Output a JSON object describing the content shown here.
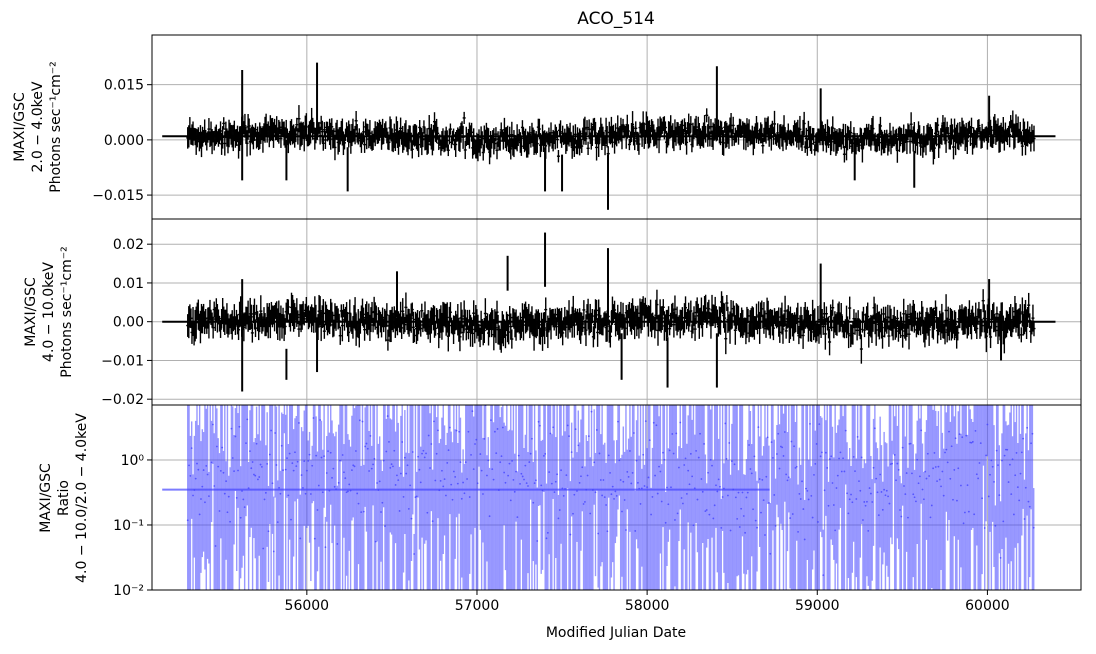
{
  "chart_data": [
    {
      "type": "line",
      "panel": "top",
      "title": "ACO_514",
      "ylabel": [
        "MAXI/GSC",
        "2.0 − 4.0keV",
        "Photons sec⁻¹cm⁻²"
      ],
      "xlim": [
        55090,
        60550
      ],
      "ylim": [
        -0.0215,
        0.0285
      ],
      "yticks": [
        -0.015,
        0.0,
        0.015
      ],
      "ytick_labels": [
        "−0.015",
        "0.000",
        "0.015"
      ],
      "xticks": [
        56000,
        57000,
        58000,
        59000,
        60000
      ],
      "grid": true,
      "series": [
        {
          "style": "errorbar",
          "color": "#000000",
          "summary_level": 0.001,
          "summary_x": [
            55150,
            60400
          ],
          "x_range": [
            55300,
            60280
          ],
          "n_points": 800,
          "noise_sigma": 0.0025,
          "highlights": [
            {
              "x": 55620,
              "low": -0.011,
              "high": 0.019
            },
            {
              "x": 56060,
              "low": 0.0,
              "high": 0.021
            },
            {
              "x": 55880,
              "low": -0.011,
              "high": 0.0
            },
            {
              "x": 56240,
              "low": -0.014,
              "high": -0.002
            },
            {
              "x": 57400,
              "low": -0.014,
              "high": -0.002
            },
            {
              "x": 57500,
              "low": -0.014,
              "high": -0.004
            },
            {
              "x": 57770,
              "low": -0.019,
              "high": -0.004
            },
            {
              "x": 58410,
              "low": 0.002,
              "high": 0.02
            },
            {
              "x": 59020,
              "low": 0.0,
              "high": 0.014
            },
            {
              "x": 59220,
              "low": -0.011,
              "high": 0.0
            },
            {
              "x": 59570,
              "low": -0.013,
              "high": -0.003
            },
            {
              "x": 60010,
              "low": 0.003,
              "high": 0.012
            }
          ]
        }
      ]
    },
    {
      "type": "line",
      "panel": "middle",
      "ylabel": [
        "MAXI/GSC",
        "4.0 − 10.0keV",
        "Photons sec⁻¹cm⁻²"
      ],
      "xlim": [
        55090,
        60550
      ],
      "ylim": [
        -0.0215,
        0.0265
      ],
      "yticks": [
        -0.02,
        -0.01,
        0.0,
        0.01,
        0.02
      ],
      "ytick_labels": [
        "−0.02",
        "−0.01",
        "0.00",
        "0.01",
        "0.02"
      ],
      "xticks": [
        56000,
        57000,
        58000,
        59000,
        60000
      ],
      "grid": true,
      "series": [
        {
          "style": "errorbar",
          "color": "#000000",
          "summary_level": 0.0,
          "summary_x": [
            55150,
            60400
          ],
          "x_range": [
            55300,
            60280
          ],
          "n_points": 800,
          "noise_sigma": 0.0028,
          "highlights": [
            {
              "x": 55620,
              "low": -0.018,
              "high": 0.011
            },
            {
              "x": 55880,
              "low": -0.015,
              "high": -0.007
            },
            {
              "x": 56060,
              "low": -0.013,
              "high": -0.002
            },
            {
              "x": 56530,
              "low": 0.001,
              "high": 0.013
            },
            {
              "x": 57180,
              "low": 0.008,
              "high": 0.017
            },
            {
              "x": 57400,
              "low": 0.009,
              "high": 0.023
            },
            {
              "x": 57770,
              "low": 0.001,
              "high": 0.019
            },
            {
              "x": 57850,
              "low": -0.015,
              "high": -0.003
            },
            {
              "x": 58120,
              "low": -0.017,
              "high": -0.004
            },
            {
              "x": 58410,
              "low": -0.017,
              "high": -0.003
            },
            {
              "x": 59020,
              "low": 0.0,
              "high": 0.015
            },
            {
              "x": 60010,
              "low": 0.0,
              "high": 0.011
            },
            {
              "x": 60080,
              "low": -0.01,
              "high": 0.0
            }
          ]
        }
      ]
    },
    {
      "type": "line",
      "panel": "bottom",
      "ylabel": [
        "MAXI/GSC",
        "Ratio",
        "4.0 − 10.0/2.0 − 4.0keV"
      ],
      "xlabel": "Modified Julian Date",
      "xlim": [
        55090,
        60550
      ],
      "yscale": "log",
      "ylim": [
        0.01,
        7.0
      ],
      "yticks": [
        0.01,
        0.1,
        1.0
      ],
      "ytick_labels": [
        "10⁻²",
        "10⁻¹",
        "10⁰"
      ],
      "xticks": [
        56000,
        57000,
        58000,
        59000,
        60000
      ],
      "xtick_labels": [
        "56000",
        "57000",
        "58000",
        "59000",
        "60000"
      ],
      "grid": true,
      "series": [
        {
          "style": "errorbar",
          "color": "#4444ff",
          "summary_level": 0.35,
          "summary_x": [
            55150,
            58720
          ],
          "x_range": [
            55300,
            60280
          ],
          "n_points": 640
        }
      ]
    }
  ]
}
